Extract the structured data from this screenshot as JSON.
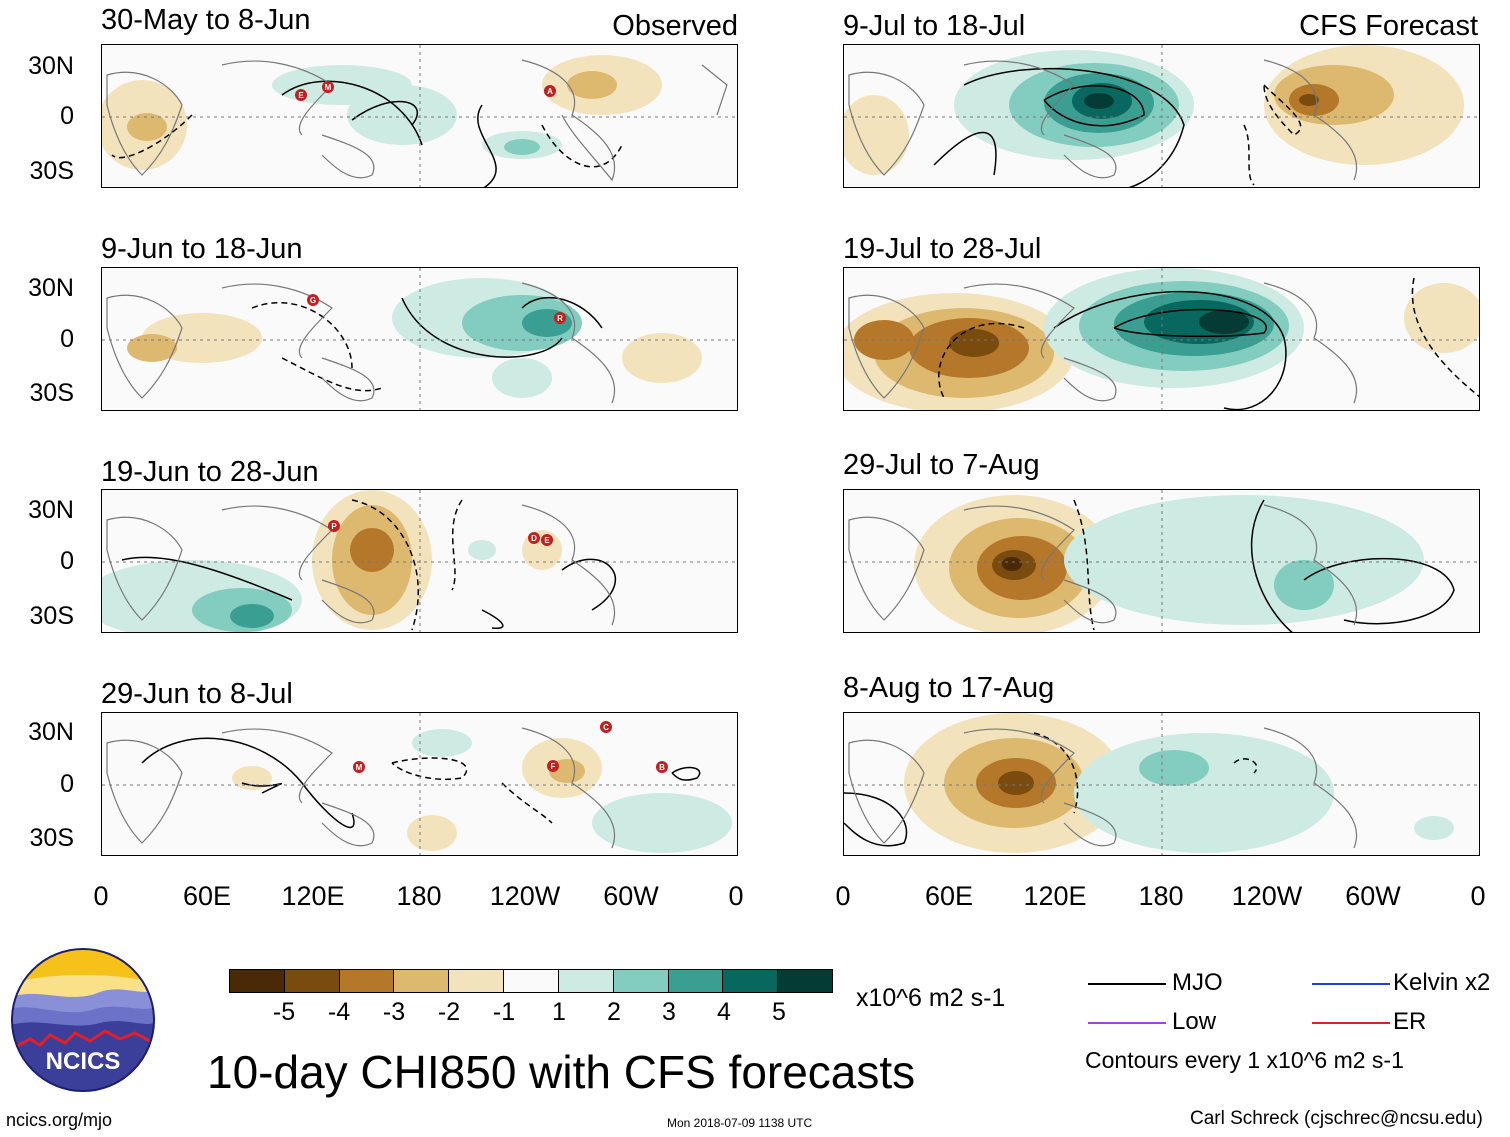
{
  "header": {
    "observed": "Observed",
    "forecast": "CFS Forecast"
  },
  "panels_observed": [
    "30-May to 8-Jun",
    "9-Jun to 18-Jun",
    "19-Jun to 28-Jun",
    "29-Jun to 8-Jul"
  ],
  "panels_forecast": [
    "9-Jul to 18-Jul",
    "19-Jul to 28-Jul",
    "29-Jul to 7-Aug",
    "8-Aug to 17-Aug"
  ],
  "lat_labels": [
    "30N",
    "0",
    "30S"
  ],
  "lon_labels": [
    "0",
    "60E",
    "120E",
    "180",
    "120W",
    "60W",
    "0"
  ],
  "colorbar": {
    "colors": [
      "#4a2a06",
      "#7a4b0e",
      "#b5782a",
      "#ddb86f",
      "#f3e3bc",
      "#fafafa",
      "#cdebe3",
      "#82cdbf",
      "#3a9e92",
      "#08685f",
      "#043b34"
    ],
    "ticks": [
      "-5",
      "-4",
      "-3",
      "-2",
      "-1",
      "1",
      "2",
      "3",
      "4",
      "5"
    ],
    "units": "x10^6 m2 s-1"
  },
  "legend": {
    "mjo": "MJO",
    "kelvin": "Kelvin x2",
    "low": "Low",
    "er": "ER",
    "mjo_color": "#000000",
    "kelvin_color": "#1f3fd8",
    "low_color": "#a040e0",
    "er_color": "#e02020",
    "contours": "Contours every 1 x10^6 m2 s-1"
  },
  "title": "10-day CHI850 with CFS forecasts",
  "logo_text": "NCICS",
  "footer": {
    "url": "ncics.org/mjo",
    "timestamp": "Mon 2018-07-09 1138 UTC",
    "author": "Carl Schreck (cjschrec@ncsu.edu)"
  },
  "storms": {
    "p0": [
      "E",
      "M",
      "A"
    ],
    "p1": [
      "G",
      "R"
    ],
    "p2": [
      "P",
      "D",
      "E"
    ],
    "p3": [
      "M",
      "F",
      "C",
      "B"
    ]
  }
}
